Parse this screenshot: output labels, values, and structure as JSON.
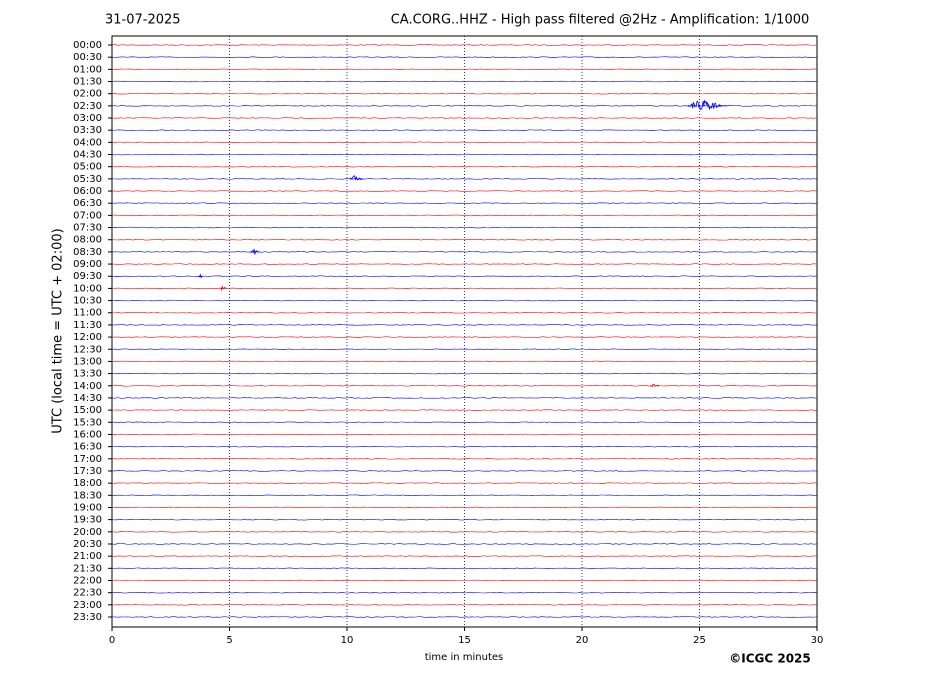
{
  "chart_data": {
    "type": "helicorder",
    "date": "31-07-2025",
    "title": "CA.CORG..HHZ - High pass filtered @2Hz - Amplification: 1/1000",
    "ylabel": "UTC (local time = UTC + 02:00)",
    "xlabel": "time in minutes",
    "credit": "©ICGC 2025",
    "categories": [
      "00:00",
      "00:30",
      "01:00",
      "01:30",
      "02:00",
      "02:30",
      "03:00",
      "03:30",
      "04:00",
      "04:30",
      "05:00",
      "05:30",
      "06:00",
      "06:30",
      "07:00",
      "07:30",
      "08:00",
      "08:30",
      "09:00",
      "09:30",
      "10:00",
      "10:30",
      "11:00",
      "11:30",
      "12:00",
      "12:30",
      "13:00",
      "13:30",
      "14:00",
      "14:30",
      "15:00",
      "15:30",
      "16:00",
      "16:30",
      "17:00",
      "17:30",
      "18:00",
      "18:30",
      "19:00",
      "19:30",
      "20:00",
      "20:30",
      "21:00",
      "21:30",
      "22:00",
      "22:30",
      "23:00",
      "23:30"
    ],
    "colors": [
      "#ff0000",
      "#0000ff"
    ],
    "xlim": [
      0,
      30
    ],
    "xticks": [
      0,
      5,
      10,
      15,
      20,
      25,
      30
    ],
    "grid": true,
    "events": [
      {
        "trace": 5,
        "start": 24.5,
        "end": 26.2
      },
      {
        "trace": 11,
        "start": 10.1,
        "end": 10.7
      },
      {
        "trace": 17,
        "start": 5.9,
        "end": 6.3
      },
      {
        "trace": 19,
        "start": 3.7,
        "end": 3.9
      },
      {
        "trace": 20,
        "start": 4.6,
        "end": 4.9
      },
      {
        "trace": 28,
        "start": 22.9,
        "end": 23.3
      }
    ]
  }
}
